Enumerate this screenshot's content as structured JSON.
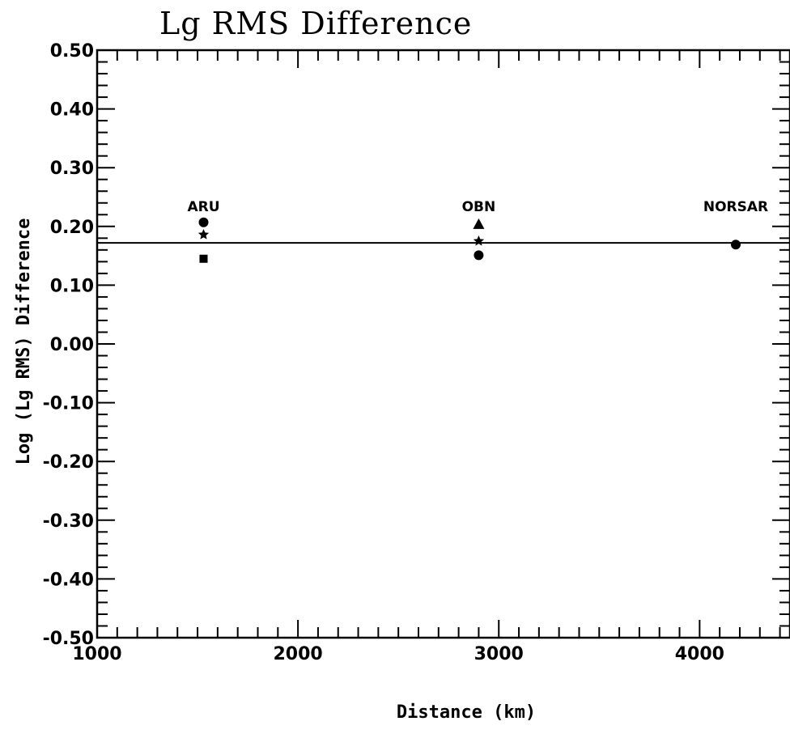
{
  "chart_data": {
    "type": "scatter",
    "title": "Lg RMS Difference",
    "xlabel": "Distance (km)",
    "ylabel": "Log (Lg RMS) Difference",
    "xlim": [
      1000,
      4450
    ],
    "ylim": [
      -0.5,
      0.5
    ],
    "x_ticks": [
      1000,
      2000,
      3000,
      4000
    ],
    "x_tick_labels": [
      "1000",
      "2000",
      "3000",
      "4000"
    ],
    "y_ticks": [
      -0.5,
      -0.4,
      -0.3,
      -0.2,
      -0.1,
      0.0,
      0.1,
      0.2,
      0.3,
      0.4,
      0.5
    ],
    "y_tick_labels": [
      "-0.50",
      "-0.40",
      "-0.30",
      "-0.20",
      "-0.10",
      "0.00",
      "0.10",
      "0.20",
      "0.30",
      "0.40",
      "0.50"
    ],
    "grid": false,
    "reference_line": {
      "y": 0.172
    },
    "stations": [
      {
        "label": "ARU",
        "x": 1530
      },
      {
        "label": "OBN",
        "x": 2900
      },
      {
        "label": "NORSAR",
        "x": 4180
      }
    ],
    "points": [
      {
        "station": "ARU",
        "x": 1530,
        "y": 0.207,
        "marker": "circle"
      },
      {
        "station": "ARU",
        "x": 1530,
        "y": 0.186,
        "marker": "star"
      },
      {
        "station": "ARU",
        "x": 1530,
        "y": 0.145,
        "marker": "square"
      },
      {
        "station": "OBN",
        "x": 2900,
        "y": 0.204,
        "marker": "triangle"
      },
      {
        "station": "OBN",
        "x": 2900,
        "y": 0.175,
        "marker": "star"
      },
      {
        "station": "OBN",
        "x": 2900,
        "y": 0.151,
        "marker": "circle"
      },
      {
        "station": "NORSAR",
        "x": 4180,
        "y": 0.169,
        "marker": "circle"
      }
    ]
  }
}
